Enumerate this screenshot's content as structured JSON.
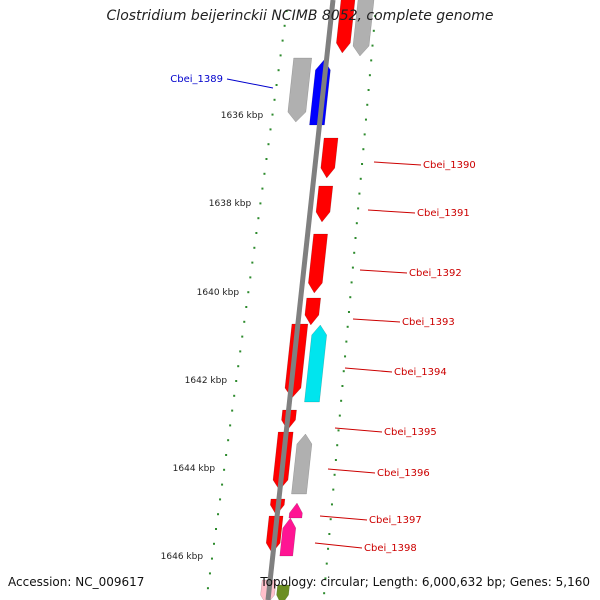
{
  "title": "Clostridium beijerinckii NCIMB 8052, complete genome",
  "footer": {
    "accession": "Accession: NC_009617",
    "info": "Topology: circular; Length: 6,000,632 bp; Genes: 5,160"
  },
  "kbp_labels": [
    "1636 kbp",
    "1638 kbp",
    "1640 kbp",
    "1642 kbp",
    "1644 kbp",
    "1646 kbp"
  ],
  "colors": {
    "backbone": "#808080",
    "tick": "#2e8b2e",
    "gene_forward": "#ff0000",
    "gene_other": "#b0b0b0",
    "highlight": "#0000ff",
    "cyan": "#00e5ee",
    "magenta": "#ff1493",
    "label_red": "#cc0000",
    "label_blue": "#0000cc"
  },
  "genes": [
    {
      "label": "Cbei_1389",
      "color": "highlight"
    },
    {
      "label": "Cbei_1390",
      "color": "gene_forward"
    },
    {
      "label": "Cbei_1391",
      "color": "gene_forward"
    },
    {
      "label": "Cbei_1392",
      "color": "gene_forward"
    },
    {
      "label": "Cbei_1393",
      "color": "gene_forward"
    },
    {
      "label": "Cbei_1394",
      "color": "gene_forward"
    },
    {
      "label": "Cbei_1395",
      "color": "gene_forward"
    },
    {
      "label": "Cbei_1396",
      "color": "gene_forward"
    },
    {
      "label": "Cbei_1397",
      "color": "gene_forward"
    },
    {
      "label": "Cbei_1398",
      "color": "gene_forward"
    }
  ]
}
